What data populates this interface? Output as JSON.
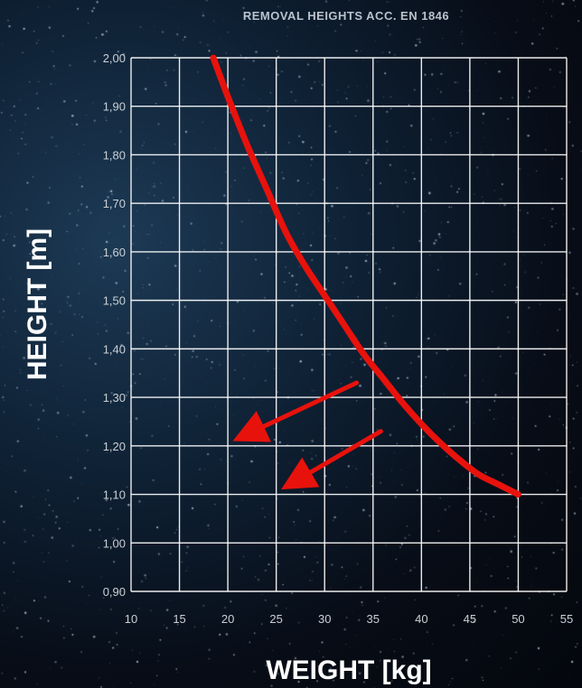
{
  "chart_data": {
    "type": "line",
    "title": "REMOVAL HEIGHTS ACC. EN 1846",
    "xlabel": "WEIGHT [kg]",
    "ylabel": "HEIGHT [m]",
    "xlim": [
      10,
      55
    ],
    "ylim": [
      0.9,
      2.0
    ],
    "x_ticks": [
      "10",
      "15",
      "20",
      "25",
      "30",
      "35",
      "40",
      "45",
      "50",
      "55"
    ],
    "y_ticks": [
      "0,90",
      "1,00",
      "1,10",
      "1,20",
      "1,30",
      "1,40",
      "1,50",
      "1,60",
      "1,70",
      "1,80",
      "1,90",
      "2,00"
    ],
    "grid": true,
    "series": [
      {
        "color": "#e8120c",
        "x": [
          18.5,
          20,
          22,
          24,
          26,
          28,
          30,
          32,
          34,
          36,
          38,
          40,
          42,
          44,
          46,
          48,
          50
        ],
        "y": [
          2.0,
          1.92,
          1.82,
          1.73,
          1.64,
          1.57,
          1.51,
          1.45,
          1.39,
          1.34,
          1.29,
          1.245,
          1.205,
          1.17,
          1.14,
          1.12,
          1.1
        ]
      }
    ],
    "annotations": [
      {
        "type": "arrow",
        "color": "#e8120c",
        "from": [
          33.3,
          1.33
        ],
        "to": [
          20.5,
          1.21
        ]
      },
      {
        "type": "arrow",
        "color": "#e8120c",
        "from": [
          35.8,
          1.23
        ],
        "to": [
          25.5,
          1.11
        ]
      }
    ]
  }
}
